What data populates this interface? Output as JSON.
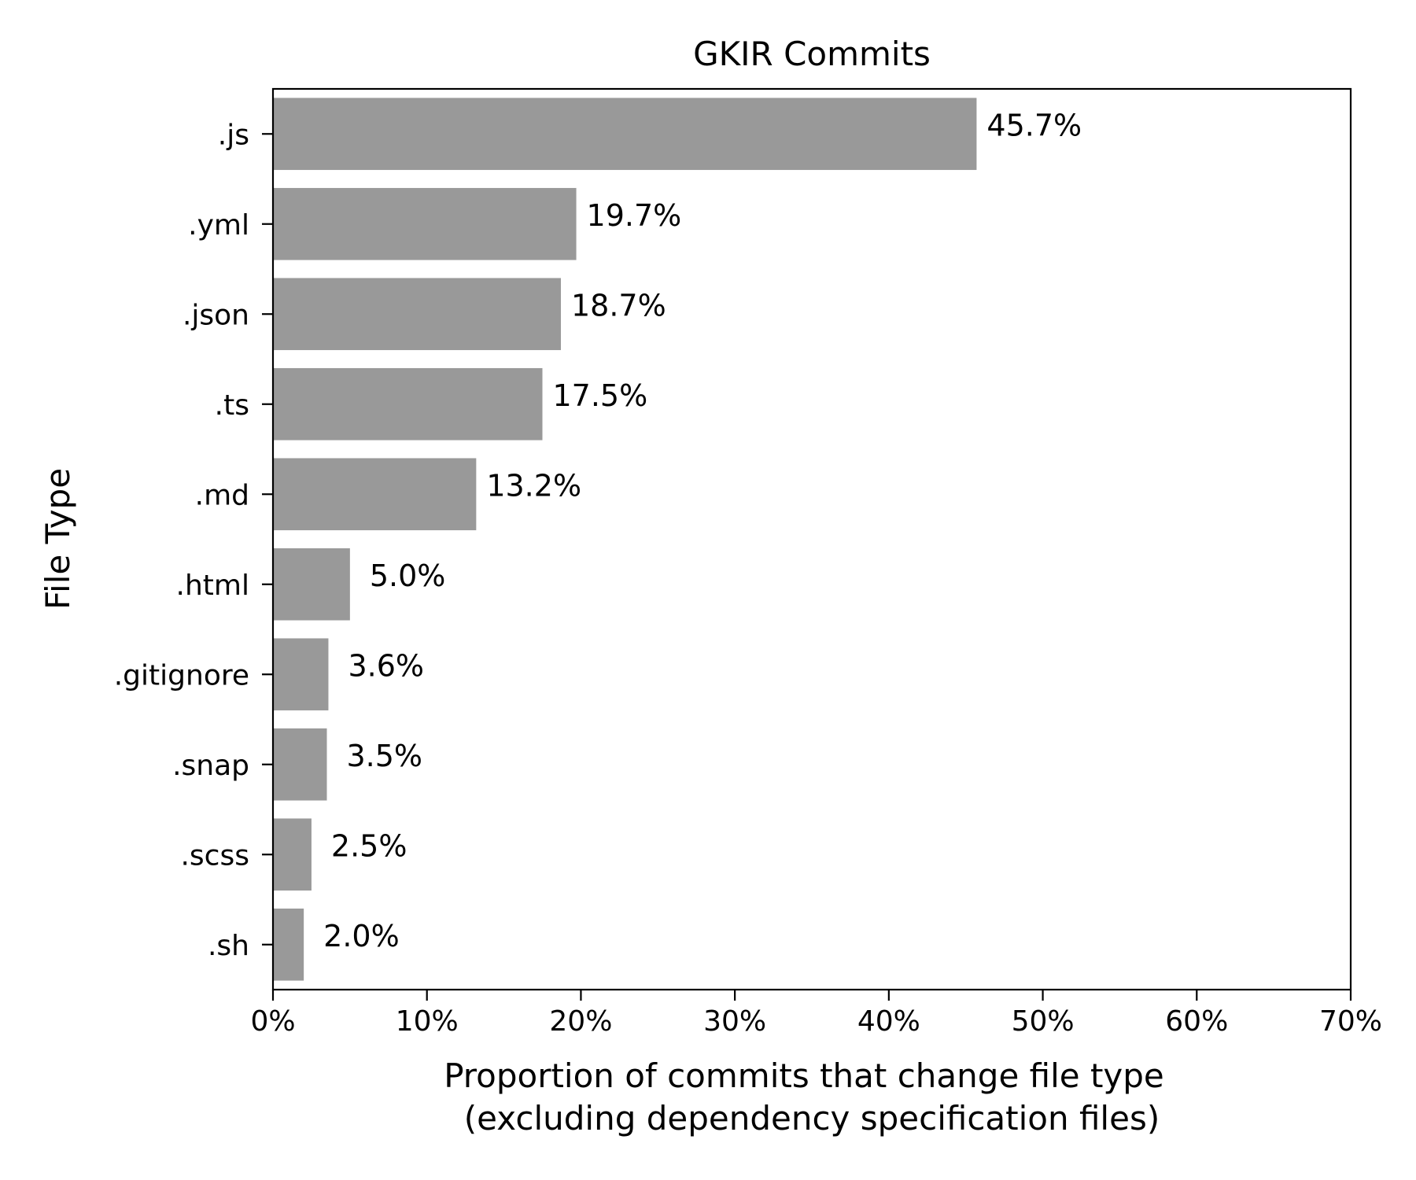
{
  "chart_data": {
    "type": "bar",
    "orientation": "horizontal",
    "title": "GKIR Commits",
    "xlabel_lines": [
      "Proportion of commits that change file type",
      "(excluding dependency specification files)"
    ],
    "ylabel": "File Type",
    "categories": [
      ".js",
      ".yml",
      ".json",
      ".ts",
      ".md",
      ".html",
      ".gitignore",
      ".snap",
      ".scss",
      ".sh"
    ],
    "values": [
      45.7,
      19.7,
      18.7,
      17.5,
      13.2,
      5.0,
      3.6,
      3.5,
      2.5,
      2.0
    ],
    "value_labels": [
      "45.7%",
      "19.7%",
      "18.7%",
      "17.5%",
      "13.2%",
      "5.0%",
      "3.6%",
      "3.5%",
      "2.5%",
      "2.0%"
    ],
    "x_ticks": [
      0,
      10,
      20,
      30,
      40,
      50,
      60,
      70
    ],
    "x_tick_labels": [
      "0%",
      "10%",
      "20%",
      "30%",
      "40%",
      "50%",
      "60%",
      "70%"
    ],
    "xlim": [
      0,
      70
    ],
    "bar_color": "#999999",
    "grid": false,
    "legend": "none"
  }
}
